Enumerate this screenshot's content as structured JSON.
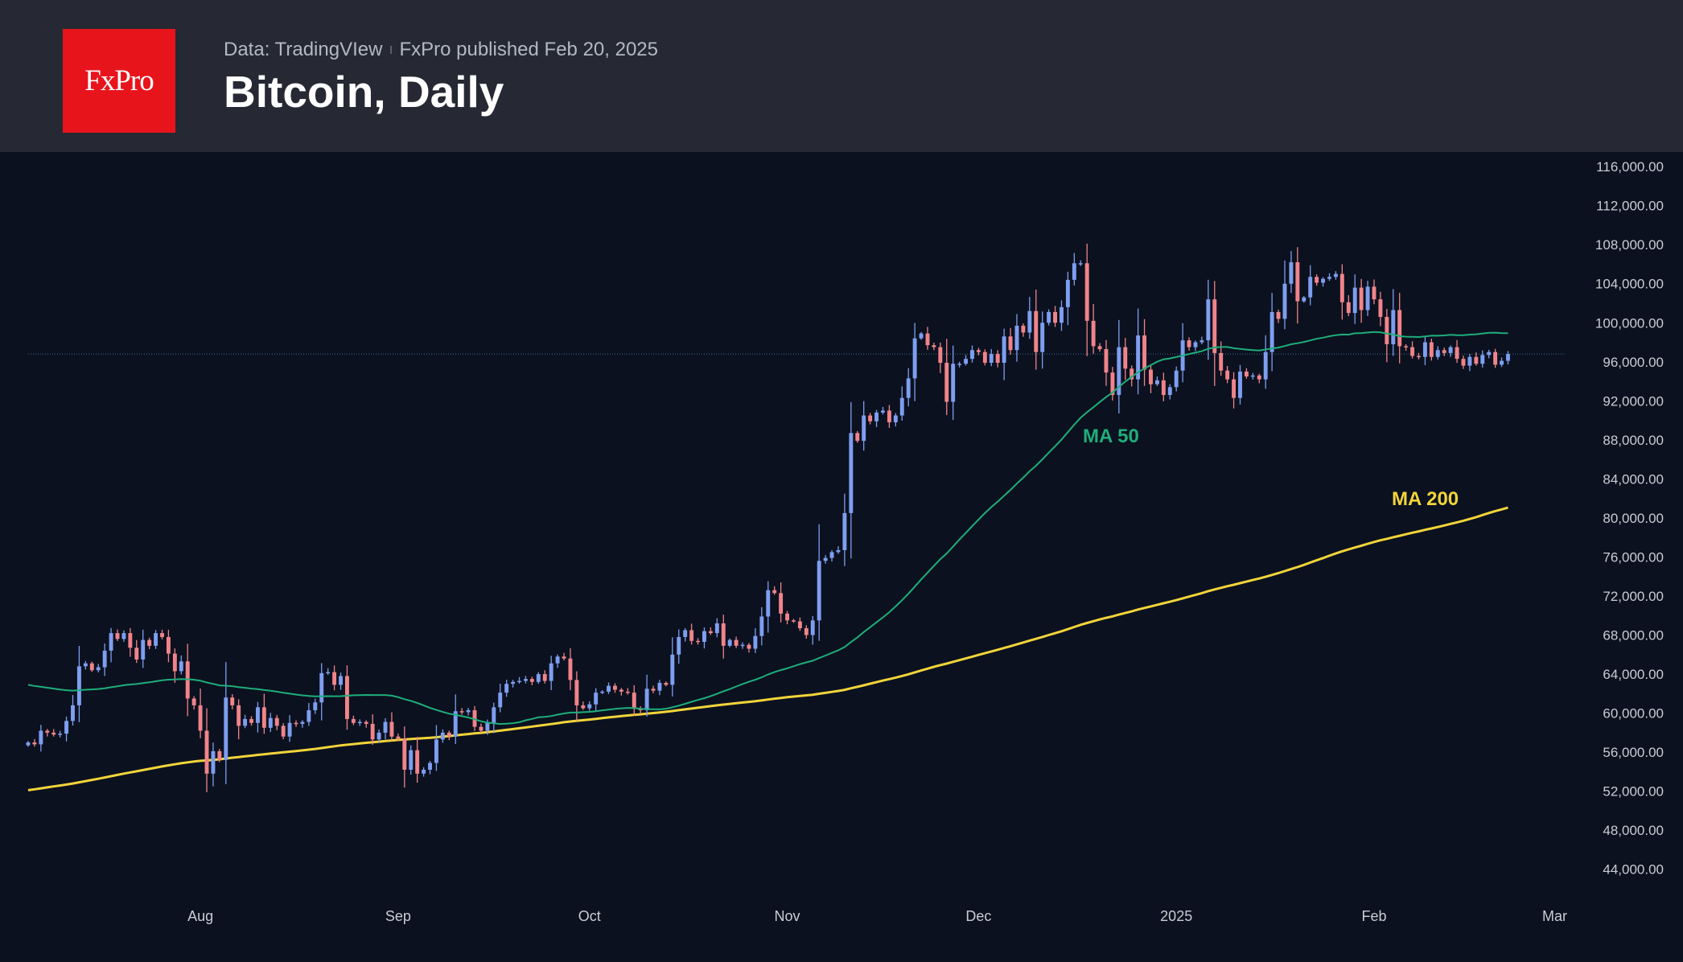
{
  "header": {
    "logo_text": "FxPro",
    "source": "Data: TradingVIew",
    "separator": "ı",
    "published": "FxPro published Feb 20, 2025",
    "title": "Bitcoin, Daily"
  },
  "colors": {
    "background": "#0b111f",
    "header": "#262933",
    "logo": "#e8141c",
    "up_candle": "#7e9ef0",
    "down_candle": "#f0848a",
    "ma50": "#1fae7a",
    "ma200": "#f2d43a",
    "last_price_line": "#3d6e8a"
  },
  "chart_data": {
    "type": "candlestick",
    "title": "Bitcoin, Daily",
    "ylim": [
      42000,
      117000
    ],
    "y_ticks": [
      "116,000.00",
      "112,000.00",
      "108,000.00",
      "104,000.00",
      "100,000.00",
      "96,000.00",
      "92,000.00",
      "88,000.00",
      "84,000.00",
      "80,000.00",
      "76,000.00",
      "72,000.00",
      "68,000.00",
      "64,000.00",
      "60,000.00",
      "56,000.00",
      "52,000.00",
      "48,000.00",
      "44,000.00"
    ],
    "x_ticks": [
      {
        "label": "Aug",
        "date": "2024-08-01"
      },
      {
        "label": "Sep",
        "date": "2024-09-01"
      },
      {
        "label": "Oct",
        "date": "2024-10-01"
      },
      {
        "label": "Nov",
        "date": "2024-11-01"
      },
      {
        "label": "Dec",
        "date": "2024-12-01"
      },
      {
        "label": "2025",
        "date": "2025-01-01"
      },
      {
        "label": "Feb",
        "date": "2025-02-01"
      },
      {
        "label": "Mar",
        "date": "2025-03-01"
      }
    ],
    "x_range": [
      "2024-07-05",
      "2025-03-01"
    ],
    "grid": false,
    "last_price": 96800,
    "ma_labels": {
      "ma50": "MA 50",
      "ma200": "MA 200"
    },
    "candle_dates": {
      "start": "2024-07-05",
      "end": "2025-02-20"
    },
    "closes": [
      57000,
      56800,
      58200,
      58000,
      57800,
      57900,
      59200,
      60800,
      64800,
      65100,
      64400,
      64700,
      66400,
      68200,
      67600,
      68200,
      66700,
      65500,
      67500,
      66900,
      68200,
      67800,
      66100,
      64300,
      65300,
      61500,
      60800,
      58200,
      53800,
      56100,
      55200,
      61600,
      60800,
      58700,
      59400,
      59000,
      60600,
      58500,
      59500,
      58700,
      57600,
      59000,
      58900,
      59100,
      60300,
      61100,
      64100,
      64200,
      62900,
      63800,
      59400,
      59000,
      59100,
      58900,
      57300,
      58000,
      59100,
      57600,
      57400,
      54200,
      56200,
      53800,
      54200,
      54900,
      57300,
      58000,
      57600,
      60200,
      60100,
      60300,
      58600,
      58200,
      59000,
      60600,
      62100,
      63000,
      63200,
      63300,
      63500,
      63200,
      64000,
      63300,
      65100,
      65800,
      65600,
      63400,
      60800,
      60500,
      60900,
      62100,
      62200,
      62800,
      62400,
      62200,
      62100,
      60500,
      60300,
      62500,
      62300,
      63100,
      62900,
      66000,
      67800,
      68500,
      67400,
      67300,
      68400,
      68200,
      69200,
      66900,
      67500,
      66900,
      67000,
      66600,
      67900,
      69900,
      72600,
      72300,
      70200,
      69500,
      69400,
      68700,
      68000,
      69500,
      75600,
      75900,
      76500,
      76700,
      80500,
      88700,
      87900,
      90500,
      89900,
      90800,
      91000,
      89800,
      90500,
      92300,
      94300,
      98400,
      98900,
      97700,
      97500,
      95900,
      91900,
      95800,
      95800,
      96300,
      97200,
      97000,
      95900,
      96800,
      95900,
      98600,
      97200,
      99700,
      99000,
      101200,
      97000,
      100000,
      101100,
      100000,
      101600,
      104400,
      106100,
      106100,
      100200,
      97600,
      97300,
      94900,
      92600,
      97500,
      95300,
      94200,
      98700,
      95200,
      93700,
      94100,
      92600,
      93400,
      95100,
      98200,
      97500,
      98000,
      98200,
      102400,
      96900,
      95100,
      94200,
      92300,
      95000,
      94500,
      94600,
      94200,
      97000,
      101100,
      100400,
      104000,
      106200,
      102200,
      102600,
      104700,
      104100,
      104500,
      104700,
      105000,
      102100,
      101000,
      103600,
      101300,
      103700,
      102400,
      100600,
      97800,
      101300,
      97600,
      97500,
      96600,
      96500,
      98000,
      96500,
      97200,
      96900,
      97500,
      96300,
      95600,
      96500,
      95800,
      96700,
      97000,
      95700,
      96100,
      96800
    ]
  }
}
